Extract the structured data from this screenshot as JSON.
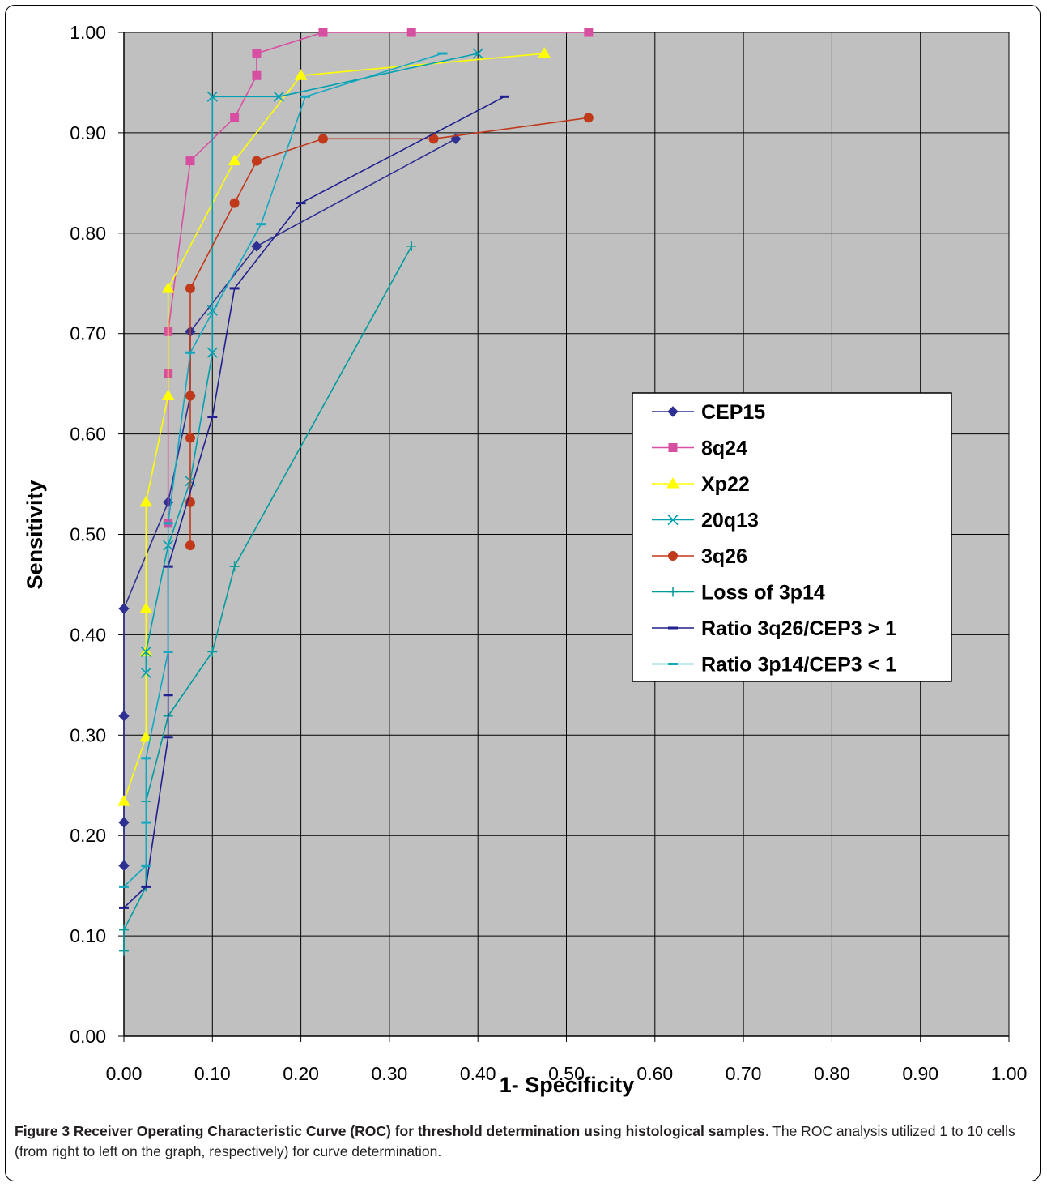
{
  "caption": {
    "title": "Figure 3 Receiver Operating Characteristic Curve (ROC) for threshold determination using histological samples",
    "text": ". The ROC analysis utilized 1 to 10 cells (from right to left on the graph, respectively) for curve determination."
  },
  "chart_data": {
    "type": "line",
    "xlabel": "1- Specificity",
    "ylabel": "Sensitivity",
    "xlim": [
      0,
      1
    ],
    "ylim": [
      0,
      1
    ],
    "xticks": [
      "0.00",
      "0.10",
      "0.20",
      "0.30",
      "0.40",
      "0.50",
      "0.60",
      "0.70",
      "0.80",
      "0.90",
      "1.00"
    ],
    "yticks": [
      "0.00",
      "0.10",
      "0.20",
      "0.30",
      "0.40",
      "0.50",
      "0.60",
      "0.70",
      "0.80",
      "0.90",
      "1.00"
    ],
    "grid": true,
    "plot_background": "#c0c0c0",
    "legend_position": "right",
    "series": [
      {
        "name": "CEP15",
        "color": "#2e3192",
        "marker": "diamond",
        "points": [
          [
            0.375,
            0.894
          ],
          [
            0.15,
            0.787
          ],
          [
            0.075,
            0.702
          ],
          [
            0.075,
            0.638
          ],
          [
            0.05,
            0.532
          ],
          [
            0,
            0.426
          ],
          [
            0,
            0.319
          ],
          [
            0,
            0.213
          ],
          [
            0,
            0.17
          ]
        ]
      },
      {
        "name": "8q24",
        "color": "#d74fa0",
        "marker": "square",
        "points": [
          [
            0.525,
            1.0
          ],
          [
            0.325,
            1.0
          ],
          [
            0.225,
            1.0
          ],
          [
            0.15,
            0.979
          ],
          [
            0.15,
            0.957
          ],
          [
            0.125,
            0.915
          ],
          [
            0.075,
            0.872
          ],
          [
            0.05,
            0.702
          ],
          [
            0.05,
            0.66
          ],
          [
            0.05,
            0.511
          ]
        ]
      },
      {
        "name": "Xp22",
        "color": "#ffff00",
        "marker": "triangle",
        "points": [
          [
            0.475,
            0.979
          ],
          [
            0.2,
            0.957
          ],
          [
            0.125,
            0.872
          ],
          [
            0.05,
            0.745
          ],
          [
            0.05,
            0.638
          ],
          [
            0.025,
            0.532
          ],
          [
            0.025,
            0.426
          ],
          [
            0.025,
            0.383
          ],
          [
            0.025,
            0.298
          ],
          [
            0,
            0.234
          ]
        ]
      },
      {
        "name": "20q13",
        "color": "#00a0b0",
        "marker": "x",
        "points": [
          [
            0.4,
            0.979
          ],
          [
            0.175,
            0.936
          ],
          [
            0.1,
            0.936
          ],
          [
            0.1,
            0.723
          ],
          [
            0.1,
            0.681
          ],
          [
            0.075,
            0.553
          ],
          [
            0.05,
            0.489
          ],
          [
            0.025,
            0.383
          ],
          [
            0.025,
            0.362
          ]
        ]
      },
      {
        "name": "3q26",
        "color": "#c0391b",
        "marker": "circle",
        "points": [
          [
            0.525,
            0.915
          ],
          [
            0.35,
            0.894
          ],
          [
            0.225,
            0.894
          ],
          [
            0.15,
            0.872
          ],
          [
            0.125,
            0.83
          ],
          [
            0.075,
            0.745
          ],
          [
            0.075,
            0.638
          ],
          [
            0.075,
            0.596
          ],
          [
            0.075,
            0.532
          ],
          [
            0.075,
            0.489
          ]
        ]
      },
      {
        "name": "Loss of 3p14",
        "color": "#009b9b",
        "marker": "plus",
        "points": [
          [
            0.325,
            0.787
          ],
          [
            0.125,
            0.468
          ],
          [
            0.1,
            0.383
          ],
          [
            0.05,
            0.319
          ],
          [
            0.025,
            0.234
          ],
          [
            0.025,
            0.149
          ],
          [
            0,
            0.106
          ],
          [
            0,
            0.085
          ]
        ]
      },
      {
        "name": "Ratio 3q26/CEP3 > 1",
        "color": "#1f1f8f",
        "marker": "dash",
        "points": [
          [
            0.43,
            0.936
          ],
          [
            0.2,
            0.83
          ],
          [
            0.125,
            0.745
          ],
          [
            0.1,
            0.617
          ],
          [
            0.05,
            0.468
          ],
          [
            0.05,
            0.34
          ],
          [
            0.05,
            0.298
          ],
          [
            0.025,
            0.149
          ],
          [
            0,
            0.128
          ]
        ]
      },
      {
        "name": "Ratio 3p14/CEP3 < 1",
        "color": "#12a8c0",
        "marker": "dash",
        "points": [
          [
            0.36,
            0.979
          ],
          [
            0.205,
            0.936
          ],
          [
            0.155,
            0.809
          ],
          [
            0.075,
            0.681
          ],
          [
            0.05,
            0.511
          ],
          [
            0.05,
            0.383
          ],
          [
            0.025,
            0.277
          ],
          [
            0.025,
            0.213
          ],
          [
            0.025,
            0.17
          ],
          [
            0,
            0.149
          ]
        ]
      }
    ]
  }
}
